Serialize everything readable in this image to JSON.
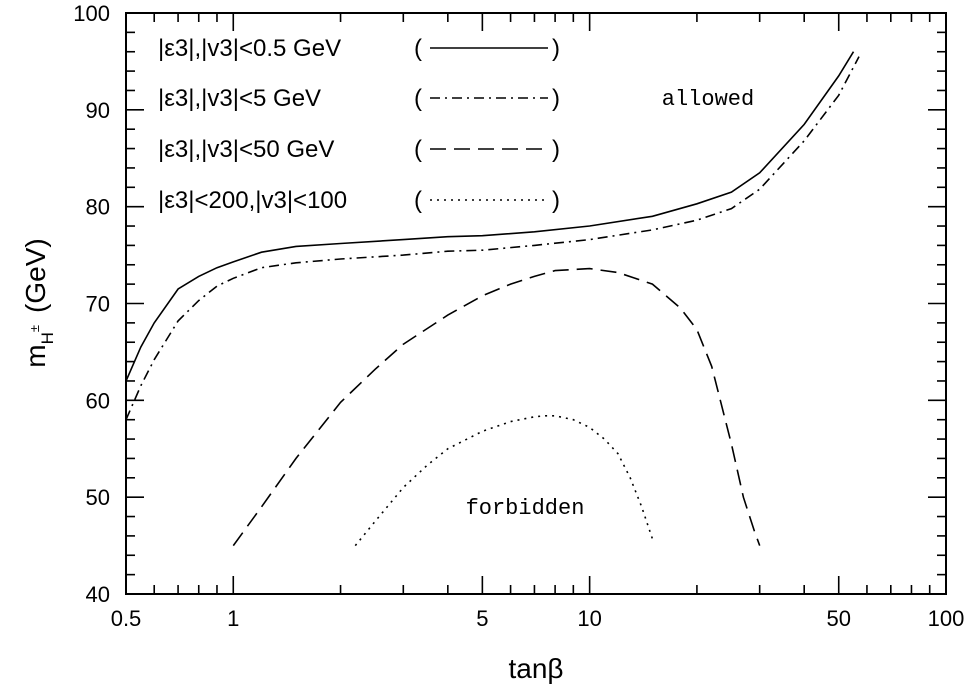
{
  "chart_data": {
    "type": "line",
    "xscale": "log",
    "xlim": [
      0.5,
      100
    ],
    "ylim": [
      40,
      100
    ],
    "xticks": [
      0.5,
      1,
      5,
      10,
      50,
      100
    ],
    "xtick_labels": [
      "0.5",
      "1",
      "5",
      "10",
      "50",
      "100"
    ],
    "yticks": [
      40,
      50,
      60,
      70,
      80,
      90,
      100
    ],
    "ytick_labels": [
      "40",
      "50",
      "60",
      "70",
      "80",
      "90",
      "100"
    ],
    "xlabel": "tanβ",
    "ylabel_main": "m",
    "ylabel_sub": "H",
    "ylabel_sup": "±",
    "ylabel_unit": "(GeV)",
    "grid": false,
    "legend_position": "top-left",
    "annotations": [
      {
        "text": "allowed",
        "x": 20,
        "y": 90.2
      },
      {
        "text": "forbidden",
        "x": 7.5,
        "y": 48.7
      }
    ],
    "series": [
      {
        "name": "|ε3|,|v3|<0.5 GeV",
        "style": "solid",
        "x": [
          0.5,
          0.55,
          0.6,
          0.7,
          0.8,
          0.9,
          1.0,
          1.2,
          1.5,
          2,
          3,
          4,
          5,
          7,
          10,
          15,
          20,
          25,
          30,
          40,
          50,
          55
        ],
        "y": [
          62.0,
          65.5,
          68.0,
          71.5,
          72.8,
          73.7,
          74.3,
          75.3,
          75.9,
          76.2,
          76.6,
          76.9,
          77.0,
          77.4,
          78.0,
          79.0,
          80.3,
          81.5,
          83.5,
          88.5,
          93.5,
          96.0
        ]
      },
      {
        "name": "|ε3|,|v3|<5 GeV",
        "style": "dash-dot",
        "x": [
          0.5,
          0.55,
          0.6,
          0.7,
          0.8,
          0.9,
          1.0,
          1.2,
          1.5,
          2,
          3,
          4,
          5,
          7,
          10,
          15,
          20,
          25,
          30,
          40,
          50,
          57
        ],
        "y": [
          58.0,
          61.5,
          64.2,
          68.2,
          70.3,
          71.8,
          72.6,
          73.7,
          74.2,
          74.6,
          75.0,
          75.4,
          75.5,
          76.0,
          76.6,
          77.6,
          78.6,
          79.8,
          81.8,
          86.8,
          91.5,
          95.5
        ]
      },
      {
        "name": "|ε3|,|v3|<50 GeV",
        "style": "dashed",
        "x": [
          1.0,
          1.2,
          1.5,
          2,
          2.5,
          3,
          4,
          5,
          6,
          7,
          8,
          10,
          12,
          15,
          18,
          20,
          22,
          25,
          27,
          29,
          30
        ],
        "y": [
          45.0,
          49.0,
          54.0,
          59.8,
          63.2,
          65.8,
          68.8,
          70.8,
          72.0,
          72.8,
          73.4,
          73.6,
          73.2,
          72.0,
          69.5,
          67.3,
          63.5,
          55.5,
          50.0,
          46.5,
          45.0
        ]
      },
      {
        "name": "|ε3|<200,|v3|<100",
        "style": "dotted",
        "x": [
          2.2,
          2.5,
          3,
          3.5,
          4,
          5,
          6,
          7,
          7.5,
          8,
          9,
          10,
          11,
          12,
          13,
          14,
          15
        ],
        "y": [
          45.0,
          47.5,
          51.0,
          53.3,
          55.0,
          56.8,
          57.8,
          58.3,
          58.4,
          58.4,
          58.0,
          57.2,
          56.0,
          54.5,
          52.0,
          49.0,
          45.7
        ]
      }
    ],
    "legend": [
      {
        "label": "|ε3|,|v3|<0.5 GeV",
        "style": "solid"
      },
      {
        "label": "|ε3|,|v3|<5 GeV",
        "style": "dash-dot"
      },
      {
        "label": "|ε3|,|v3|<50 GeV",
        "style": "dashed"
      },
      {
        "label": "|ε3|<200,|v3|<100",
        "style": "dotted"
      }
    ]
  }
}
